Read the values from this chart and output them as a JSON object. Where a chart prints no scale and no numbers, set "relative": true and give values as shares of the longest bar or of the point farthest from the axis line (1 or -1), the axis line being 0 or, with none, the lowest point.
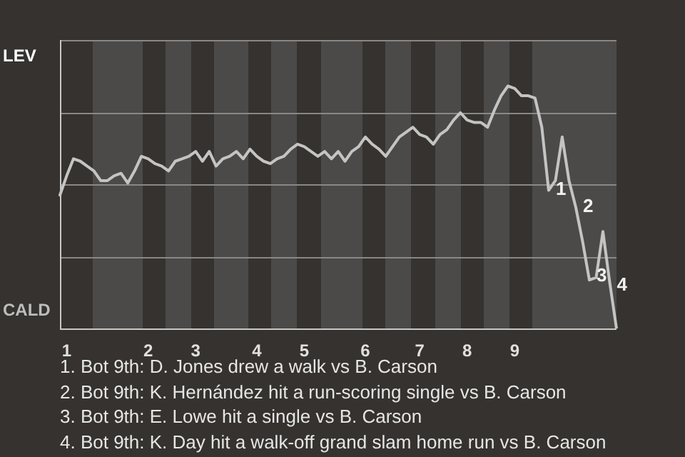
{
  "chart_data": {
    "type": "line",
    "categories": [
      null,
      "1",
      null,
      null,
      null,
      null,
      null,
      null,
      null,
      null,
      null,
      null,
      null,
      "2",
      null,
      null,
      null,
      null,
      null,
      null,
      "3",
      null,
      null,
      null,
      null,
      null,
      null,
      null,
      null,
      "4",
      null,
      null,
      null,
      null,
      null,
      null,
      "5",
      null,
      null,
      null,
      null,
      null,
      null,
      null,
      null,
      "6",
      null,
      null,
      null,
      null,
      null,
      null,
      null,
      "7",
      null,
      null,
      null,
      null,
      null,
      null,
      "8",
      null,
      null,
      null,
      null,
      null,
      null,
      "9",
      null,
      null,
      null,
      null,
      null,
      null,
      null,
      null,
      null,
      null,
      null,
      null,
      null,
      null,
      null
    ],
    "series": [
      {
        "color": "#c4c4c4",
        "values": [
          0.55,
          0.63,
          0.7,
          0.69,
          0.67,
          0.65,
          0.61,
          0.61,
          0.63,
          0.64,
          0.6,
          0.65,
          0.71,
          0.7,
          0.68,
          0.67,
          0.65,
          0.69,
          0.7,
          0.71,
          0.73,
          0.69,
          0.73,
          0.67,
          0.7,
          0.71,
          0.73,
          0.7,
          0.74,
          0.71,
          0.69,
          0.68,
          0.7,
          0.71,
          0.74,
          0.76,
          0.75,
          0.73,
          0.71,
          0.73,
          0.7,
          0.73,
          0.69,
          0.73,
          0.75,
          0.79,
          0.76,
          0.74,
          0.71,
          0.75,
          0.79,
          0.81,
          0.83,
          0.8,
          0.79,
          0.76,
          0.8,
          0.82,
          0.86,
          0.89,
          0.86,
          0.85,
          0.85,
          0.83,
          0.9,
          0.96,
          1,
          0.99,
          0.96,
          0.96,
          0.95,
          0.83,
          0.57,
          0.61,
          0.79,
          0.61,
          0.5,
          0.36,
          0.2,
          0.21,
          0.4,
          0.19,
          0
        ]
      }
    ],
    "relative": true,
    "grid": "y",
    "legend": false,
    "marker": "none",
    "annotations": [
      "LEV",
      "CALD",
      "1. Bot 9th: D. Jones drew a walk vs B. Carson",
      "2. Bot 9th: K. Hernández hit a run-scoring single vs B. Carson",
      "3. Bot 9th: E. Lowe hit a single vs B. Carson",
      "4. Bot 9th: K. Day hit a walk-off grand slam home run vs B. Carson",
      "1",
      "2",
      "3",
      "4"
    ]
  }
}
